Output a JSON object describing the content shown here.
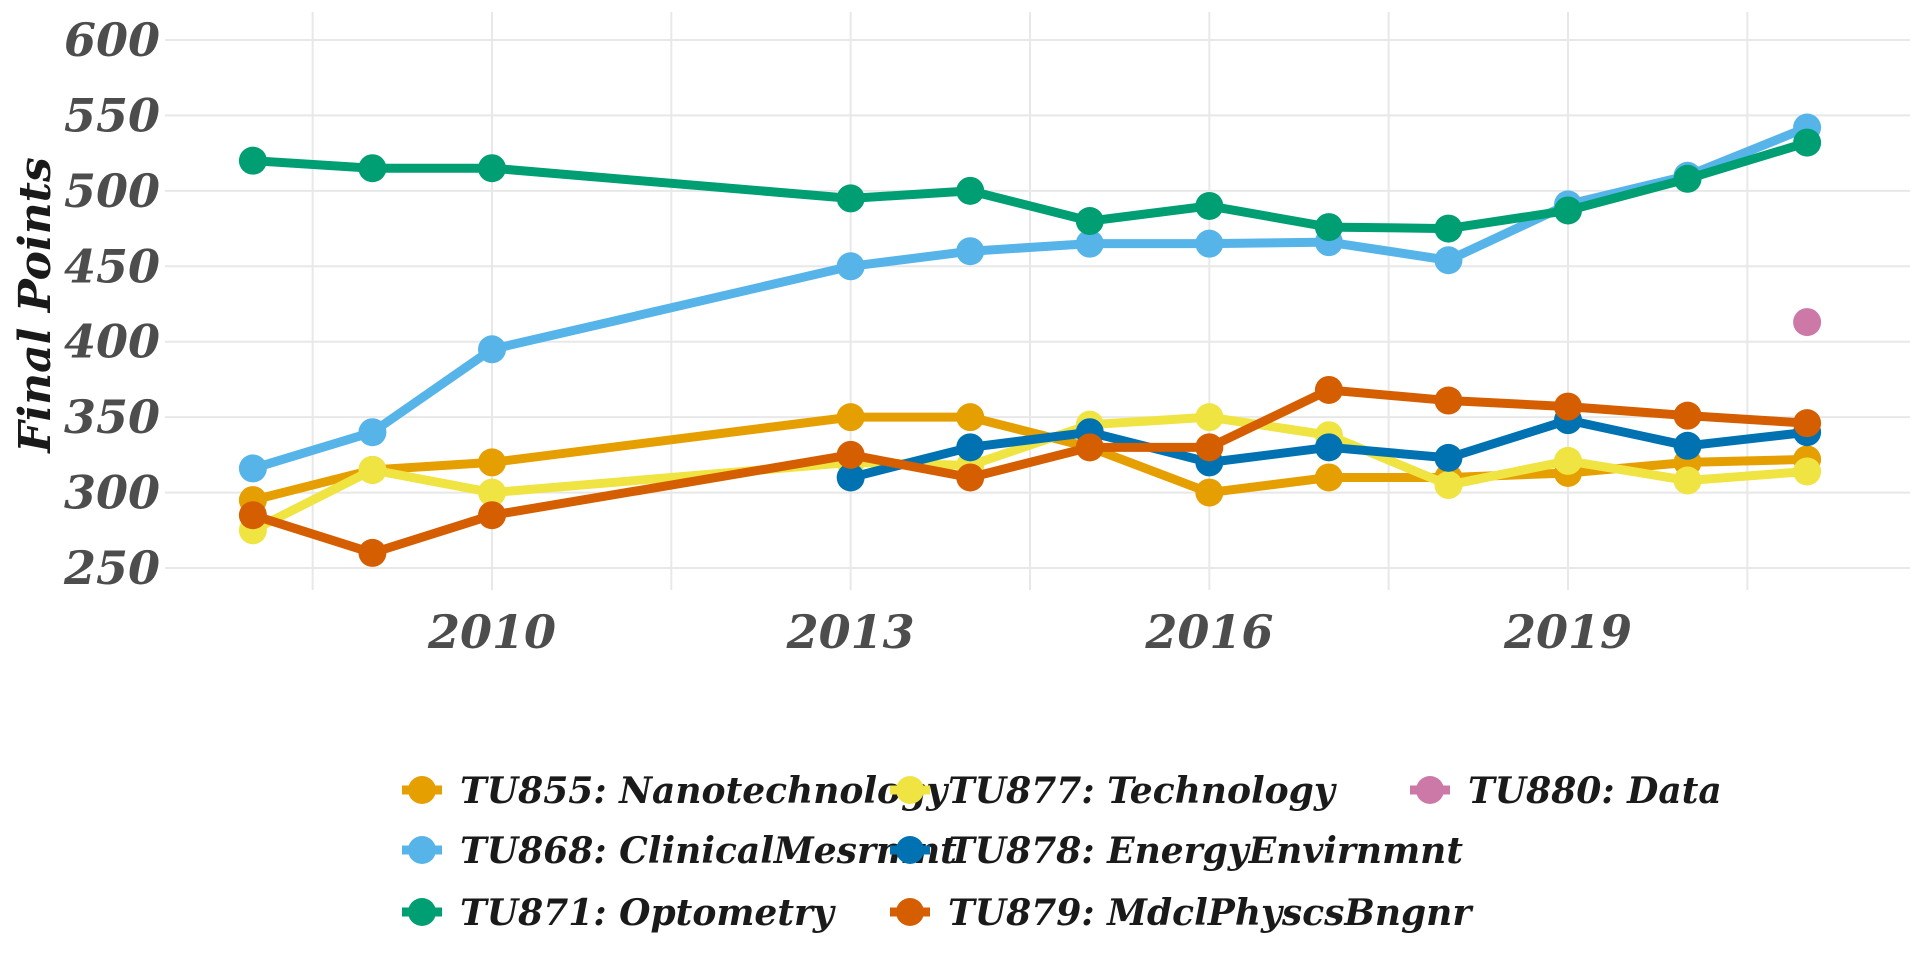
{
  "chart_data": {
    "type": "line",
    "title": "",
    "xlabel": "",
    "ylabel": "Final Points",
    "xlim": [
      2007.6,
      2022.4
    ],
    "ylim": [
      240,
      615
    ],
    "x_ticks": [
      2010,
      2013,
      2016,
      2019
    ],
    "y_ticks": [
      250,
      300,
      350,
      400,
      450,
      500,
      550,
      600
    ],
    "grid": true,
    "legend_position": "bottom",
    "series": [
      {
        "name": "TU855: Nanotechnology",
        "color": "#E69F00",
        "x": [
          2008,
          2009,
          2010,
          2013,
          2014,
          2015,
          2016,
          2017,
          2018,
          2019,
          2020,
          2021
        ],
        "y": [
          295,
          315,
          320,
          350,
          350,
          330,
          300,
          310,
          310,
          313,
          320,
          322
        ]
      },
      {
        "name": "TU868: ClinicalMesrmnt",
        "color": "#56B4E9",
        "x": [
          2008,
          2009,
          2010,
          2013,
          2014,
          2015,
          2016,
          2017,
          2018,
          2019,
          2020,
          2021
        ],
        "y": [
          316,
          340,
          395,
          450,
          460,
          465,
          465,
          466,
          454,
          491,
          510,
          542
        ]
      },
      {
        "name": "TU871: Optometry",
        "color": "#009E73",
        "x": [
          2008,
          2009,
          2010,
          2013,
          2014,
          2015,
          2016,
          2017,
          2018,
          2019,
          2020,
          2021
        ],
        "y": [
          520,
          515,
          515,
          495,
          500,
          480,
          490,
          476,
          475,
          487,
          508,
          532
        ]
      },
      {
        "name": "TU877: Technology",
        "color": "#F0E442",
        "x": [
          2008,
          2009,
          2010,
          2013,
          2014,
          2015,
          2016,
          2017,
          2018,
          2019,
          2020,
          2021
        ],
        "y": [
          275,
          315,
          300,
          320,
          318,
          345,
          350,
          338,
          305,
          321,
          308,
          314
        ]
      },
      {
        "name": "TU878: EnergyEnvirnmnt",
        "color": "#0072B2",
        "x": [
          2013,
          2014,
          2015,
          2016,
          2017,
          2018,
          2019,
          2020,
          2021
        ],
        "y": [
          310,
          330,
          340,
          320,
          330,
          323,
          348,
          331,
          340
        ]
      },
      {
        "name": "TU879: MdclPhyscsBngnr",
        "color": "#D55E00",
        "x": [
          2008,
          2009,
          2010,
          2013,
          2014,
          2015,
          2016,
          2017,
          2018,
          2019,
          2020,
          2021
        ],
        "y": [
          285,
          260,
          285,
          325,
          310,
          330,
          330,
          368,
          361,
          357,
          351,
          346
        ]
      },
      {
        "name": "TU880: Data",
        "color": "#CC79A7",
        "x": [
          2021
        ],
        "y": [
          413
        ]
      }
    ]
  }
}
